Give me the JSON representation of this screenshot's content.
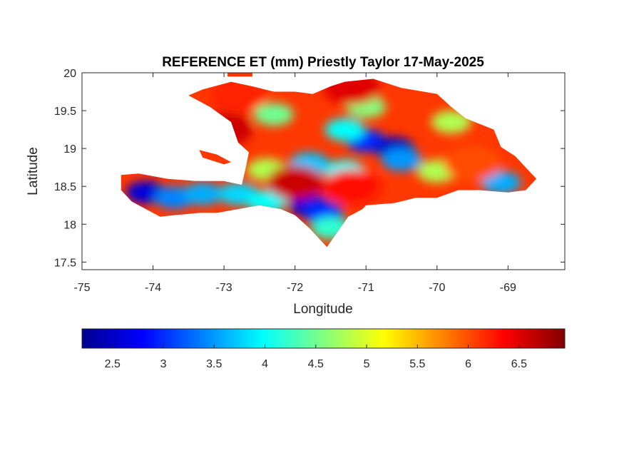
{
  "chart_data": {
    "type": "heatmap",
    "title": "REFERENCE ET (mm) Priestly Taylor 17-May-2025",
    "xlabel": "Longitude",
    "ylabel": "Latitude",
    "xlim": [
      -75,
      -68.2
    ],
    "ylim": [
      17.4,
      20
    ],
    "xticks": [
      -75,
      -74,
      -73,
      -72,
      -71,
      -70,
      -69
    ],
    "xtick_labels": [
      "-75",
      "-74",
      "-73",
      "-72",
      "-71",
      "-70",
      "-69"
    ],
    "yticks": [
      17.5,
      18,
      18.5,
      19,
      19.5,
      20
    ],
    "ytick_labels": [
      "17.5",
      "18",
      "18.5",
      "19",
      "19.5",
      "20"
    ],
    "colorbar": {
      "orientation": "horizontal",
      "colormap": "jet",
      "range": [
        2.2,
        6.95
      ],
      "ticks": [
        2.5,
        3,
        3.5,
        4,
        4.5,
        5,
        5.5,
        6,
        6.5
      ],
      "tick_labels": [
        "2.5",
        "3",
        "3.5",
        "4",
        "4.5",
        "5",
        "5.5",
        "6",
        "6.5"
      ],
      "colors": [
        "#00008f",
        "#0000ff",
        "#0080ff",
        "#00ffff",
        "#80ff80",
        "#ffff00",
        "#ff8000",
        "#ff0000",
        "#800000"
      ]
    },
    "grid": false,
    "regions": [
      {
        "name": "land_mass",
        "lon_lat": [
          [
            -74.45,
            18.65
          ],
          [
            -74.2,
            18.67
          ],
          [
            -73.8,
            18.6
          ],
          [
            -73.4,
            18.57
          ],
          [
            -73.0,
            18.57
          ],
          [
            -72.75,
            18.52
          ],
          [
            -72.7,
            18.72
          ],
          [
            -72.65,
            18.95
          ],
          [
            -72.8,
            19.08
          ],
          [
            -72.9,
            19.35
          ],
          [
            -73.2,
            19.55
          ],
          [
            -73.5,
            19.7
          ],
          [
            -73.3,
            19.78
          ],
          [
            -72.9,
            19.88
          ],
          [
            -72.6,
            19.82
          ],
          [
            -72.3,
            19.75
          ],
          [
            -72.0,
            19.75
          ],
          [
            -71.75,
            19.72
          ],
          [
            -71.5,
            19.82
          ],
          [
            -71.3,
            19.88
          ],
          [
            -70.9,
            19.92
          ],
          [
            -70.5,
            19.8
          ],
          [
            -70.0,
            19.72
          ],
          [
            -69.8,
            19.55
          ],
          [
            -69.6,
            19.4
          ],
          [
            -69.2,
            19.25
          ],
          [
            -69.1,
            19.02
          ],
          [
            -68.9,
            18.9
          ],
          [
            -68.75,
            18.75
          ],
          [
            -68.6,
            18.6
          ],
          [
            -68.75,
            18.45
          ],
          [
            -69.0,
            18.42
          ],
          [
            -69.4,
            18.45
          ],
          [
            -69.7,
            18.45
          ],
          [
            -70.0,
            18.35
          ],
          [
            -70.3,
            18.35
          ],
          [
            -70.6,
            18.28
          ],
          [
            -71.0,
            18.25
          ],
          [
            -71.05,
            18.2
          ],
          [
            -71.25,
            18.1
          ],
          [
            -71.4,
            17.9
          ],
          [
            -71.55,
            17.7
          ],
          [
            -71.65,
            17.8
          ],
          [
            -71.8,
            17.95
          ],
          [
            -72.0,
            18.12
          ],
          [
            -72.2,
            18.2
          ],
          [
            -72.5,
            18.25
          ],
          [
            -72.8,
            18.2
          ],
          [
            -73.1,
            18.15
          ],
          [
            -73.35,
            18.15
          ],
          [
            -73.7,
            18.12
          ],
          [
            -73.9,
            18.1
          ],
          [
            -74.1,
            18.2
          ],
          [
            -74.3,
            18.3
          ],
          [
            -74.45,
            18.45
          ]
        ]
      },
      {
        "name": "tortuga_island",
        "lon_lat": [
          [
            -72.95,
            20.05
          ],
          [
            -72.6,
            20.08
          ],
          [
            -72.6,
            19.95
          ],
          [
            -72.95,
            19.95
          ]
        ]
      },
      {
        "name": "gonave_island",
        "lon_lat": [
          [
            -73.35,
            18.98
          ],
          [
            -73.1,
            18.92
          ],
          [
            -72.9,
            18.82
          ],
          [
            -73.0,
            18.79
          ],
          [
            -73.3,
            18.88
          ]
        ]
      }
    ],
    "value_blobs": [
      {
        "lon": -74.1,
        "lat": 18.42,
        "value": 2.6
      },
      {
        "lon": -73.7,
        "lat": 18.35,
        "value": 3.4
      },
      {
        "lon": -73.3,
        "lat": 18.4,
        "value": 3.6
      },
      {
        "lon": -72.8,
        "lat": 18.4,
        "value": 3.8
      },
      {
        "lon": -72.4,
        "lat": 18.3,
        "value": 4.0
      },
      {
        "lon": -71.8,
        "lat": 18.25,
        "value": 2.6
      },
      {
        "lon": -71.6,
        "lat": 18.15,
        "value": 3.0
      },
      {
        "lon": -71.5,
        "lat": 17.95,
        "value": 4.2
      },
      {
        "lon": -72.4,
        "lat": 18.72,
        "value": 4.8
      },
      {
        "lon": -71.8,
        "lat": 18.8,
        "value": 3.7
      },
      {
        "lon": -71.3,
        "lat": 18.7,
        "value": 4.0
      },
      {
        "lon": -71.0,
        "lat": 19.1,
        "value": 3.0
      },
      {
        "lon": -70.6,
        "lat": 19.0,
        "value": 2.5
      },
      {
        "lon": -70.5,
        "lat": 18.85,
        "value": 3.5
      },
      {
        "lon": -70.0,
        "lat": 18.7,
        "value": 4.8
      },
      {
        "lon": -71.3,
        "lat": 19.25,
        "value": 4.0
      },
      {
        "lon": -72.3,
        "lat": 19.45,
        "value": 4.5
      },
      {
        "lon": -71.0,
        "lat": 19.55,
        "value": 4.6
      },
      {
        "lon": -69.1,
        "lat": 18.55,
        "value": 3.6
      },
      {
        "lon": -69.8,
        "lat": 19.35,
        "value": 4.8
      },
      {
        "lon": -73.0,
        "lat": 19.25,
        "value": 6.6
      },
      {
        "lon": -72.0,
        "lat": 18.55,
        "value": 6.6
      },
      {
        "lon": -71.2,
        "lat": 18.5,
        "value": 6.3
      },
      {
        "lon": -69.5,
        "lat": 18.8,
        "value": 6.0
      },
      {
        "lon": -71.2,
        "lat": 19.8,
        "value": 6.5
      },
      {
        "lon": -72.8,
        "lat": 19.7,
        "value": 6.2
      }
    ]
  }
}
